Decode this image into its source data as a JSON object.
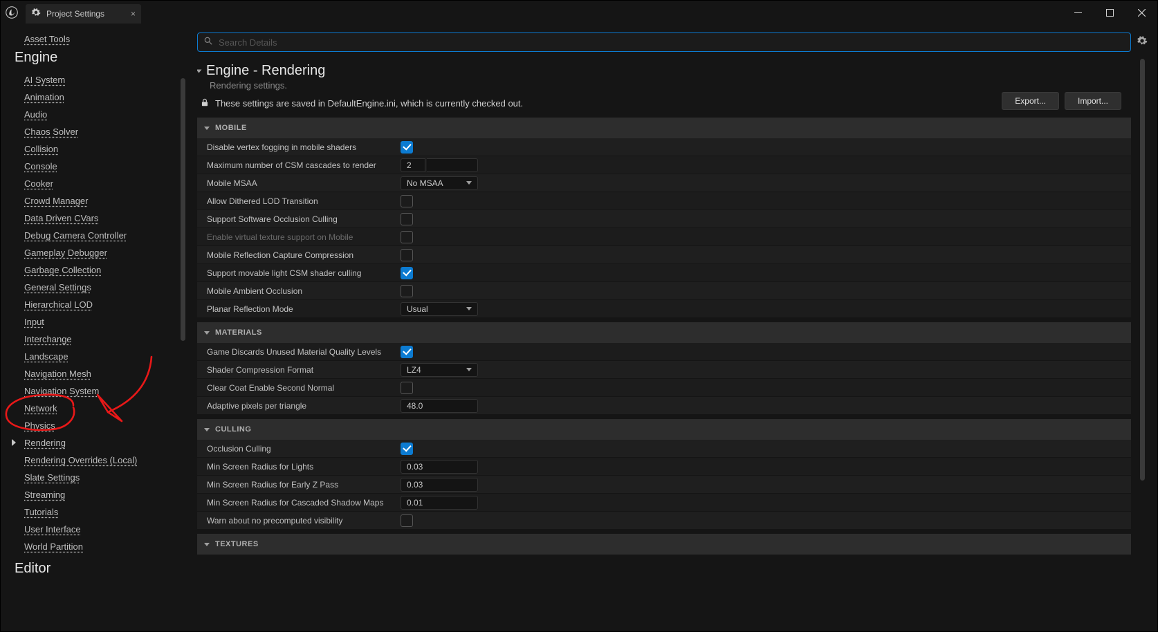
{
  "window": {
    "title": "Project Settings"
  },
  "sidebar": {
    "top_link": "Asset Tools",
    "section_engine": "Engine",
    "section_editor": "Editor",
    "items": [
      "AI System",
      "Animation",
      "Audio",
      "Chaos Solver",
      "Collision",
      "Console",
      "Cooker",
      "Crowd Manager",
      "Data Driven CVars",
      "Debug Camera Controller",
      "Gameplay Debugger",
      "Garbage Collection",
      "General Settings",
      "Hierarchical LOD",
      "Input",
      "Interchange",
      "Landscape",
      "Navigation Mesh",
      "Navigation System",
      "Network",
      "Physics",
      "Rendering",
      "Rendering Overrides (Local)",
      "Slate Settings",
      "Streaming",
      "Tutorials",
      "User Interface",
      "World Partition"
    ],
    "selected_index": 21
  },
  "search": {
    "placeholder": "Search Details"
  },
  "header": {
    "title": "Engine - Rendering",
    "subtitle": "Rendering settings.",
    "lock_msg": "These settings are saved in DefaultEngine.ini, which is currently checked out.",
    "export": "Export...",
    "import": "Import..."
  },
  "categories": [
    {
      "name": "MOBILE",
      "rows": [
        {
          "label": "Disable vertex fogging in mobile shaders",
          "type": "check",
          "value": true
        },
        {
          "label": "Maximum number of CSM cascades to render",
          "type": "numpair",
          "value": "2"
        },
        {
          "label": "Mobile MSAA",
          "type": "select",
          "value": "No MSAA"
        },
        {
          "label": "Allow Dithered LOD Transition",
          "type": "check",
          "value": false
        },
        {
          "label": "Support Software Occlusion Culling",
          "type": "check",
          "value": false
        },
        {
          "label": "Enable virtual texture support on Mobile",
          "type": "check",
          "value": false,
          "dim": true
        },
        {
          "label": "Mobile Reflection Capture Compression",
          "type": "check",
          "value": false
        },
        {
          "label": "Support movable light CSM shader culling",
          "type": "check",
          "value": true
        },
        {
          "label": "Mobile Ambient Occlusion",
          "type": "check",
          "value": false
        },
        {
          "label": "Planar Reflection Mode",
          "type": "select",
          "value": "Usual"
        }
      ]
    },
    {
      "name": "MATERIALS",
      "rows": [
        {
          "label": "Game Discards Unused Material Quality Levels",
          "type": "check",
          "value": true
        },
        {
          "label": "Shader Compression Format",
          "type": "select",
          "value": "LZ4"
        },
        {
          "label": "Clear Coat Enable Second Normal",
          "type": "check",
          "value": false
        },
        {
          "label": "Adaptive pixels per triangle",
          "type": "num",
          "value": "48.0"
        }
      ]
    },
    {
      "name": "CULLING",
      "rows": [
        {
          "label": "Occlusion Culling",
          "type": "check",
          "value": true
        },
        {
          "label": "Min Screen Radius for Lights",
          "type": "num",
          "value": "0.03"
        },
        {
          "label": "Min Screen Radius for Early Z Pass",
          "type": "num",
          "value": "0.03"
        },
        {
          "label": "Min Screen Radius for Cascaded Shadow Maps",
          "type": "num",
          "value": "0.01"
        },
        {
          "label": "Warn about no precomputed visibility",
          "type": "check",
          "value": false
        }
      ]
    },
    {
      "name": "TEXTURES",
      "rows": []
    }
  ],
  "colors": {
    "accent": "#0c7bd1",
    "annotation": "#e81818"
  }
}
